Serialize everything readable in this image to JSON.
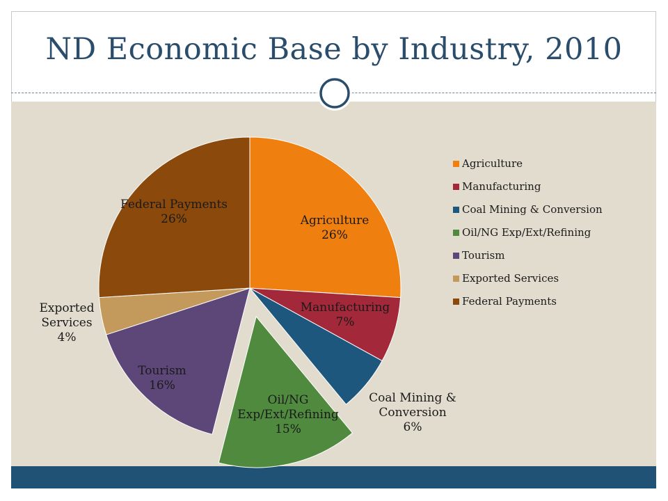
{
  "title": "ND Economic Base by Industry, 2010",
  "colors": {
    "title": "#2a4d6b",
    "panel": "#e2dccf",
    "footer": "#1f5274"
  },
  "chart_data": {
    "type": "pie",
    "legend_position": "right",
    "slices": [
      {
        "name": "Agriculture",
        "label_lines": [
          "Agriculture",
          "26%"
        ],
        "legend": "Agriculture",
        "value": 26,
        "color": "#ef7f0e",
        "exploded": false
      },
      {
        "name": "Manufacturing",
        "label_lines": [
          "Manufacturing",
          "7%"
        ],
        "legend": "Manufacturing",
        "value": 7,
        "color": "#a2283a",
        "exploded": false
      },
      {
        "name": "Coal Mining & Conversion",
        "label_lines": [
          "Coal Mining &",
          "Conversion",
          "6%"
        ],
        "legend": "Coal Mining & Conversion",
        "value": 6,
        "color": "#1e577d",
        "exploded": false
      },
      {
        "name": "Oil/NG Exp/Ext/Refining",
        "label_lines": [
          "Oil/NG",
          "Exp/Ext/Refining",
          "15%"
        ],
        "legend": "Oil/NG Exp/Ext/Refining",
        "value": 15,
        "color": "#4f8a3f",
        "exploded": true
      },
      {
        "name": "Tourism",
        "label_lines": [
          "Tourism",
          "16%"
        ],
        "legend": "Tourism",
        "value": 16,
        "color": "#5d4678",
        "exploded": false
      },
      {
        "name": "Exported Services",
        "label_lines": [
          "Exported",
          "Services",
          "4%"
        ],
        "legend": " Exported Services",
        "value": 4,
        "color": "#c49a5c",
        "exploded": false
      },
      {
        "name": "Federal Payments",
        "label_lines": [
          "Federal Payments",
          "26%"
        ],
        "legend": "Federal Payments",
        "value": 26,
        "color": "#8b4a0c",
        "exploded": false
      }
    ]
  }
}
